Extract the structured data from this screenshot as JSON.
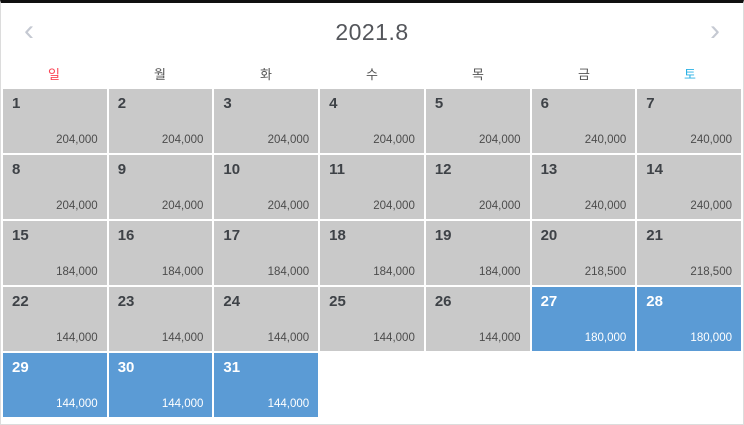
{
  "header": {
    "title": "2021.8",
    "prev_icon": "‹",
    "next_icon": "›"
  },
  "weekdays": [
    {
      "label": "일",
      "role": "sun"
    },
    {
      "label": "월",
      "role": "weekday"
    },
    {
      "label": "화",
      "role": "weekday"
    },
    {
      "label": "수",
      "role": "weekday"
    },
    {
      "label": "목",
      "role": "weekday"
    },
    {
      "label": "금",
      "role": "weekday"
    },
    {
      "label": "토",
      "role": "sat"
    }
  ],
  "colors": {
    "cell_default_bg": "#c9c9c9",
    "cell_selected_bg": "#5b9bd5",
    "sunday_text": "#fb4455",
    "saturday_text": "#29b1e5",
    "title_text": "#54565b",
    "top_border": "#101010"
  },
  "calendar": {
    "days": [
      {
        "day": "1",
        "price": "204,000",
        "state": "default"
      },
      {
        "day": "2",
        "price": "204,000",
        "state": "default"
      },
      {
        "day": "3",
        "price": "204,000",
        "state": "default"
      },
      {
        "day": "4",
        "price": "204,000",
        "state": "default"
      },
      {
        "day": "5",
        "price": "204,000",
        "state": "default"
      },
      {
        "day": "6",
        "price": "240,000",
        "state": "default"
      },
      {
        "day": "7",
        "price": "240,000",
        "state": "default"
      },
      {
        "day": "8",
        "price": "204,000",
        "state": "default"
      },
      {
        "day": "9",
        "price": "204,000",
        "state": "default"
      },
      {
        "day": "10",
        "price": "204,000",
        "state": "default"
      },
      {
        "day": "11",
        "price": "204,000",
        "state": "default"
      },
      {
        "day": "12",
        "price": "204,000",
        "state": "default"
      },
      {
        "day": "13",
        "price": "240,000",
        "state": "default"
      },
      {
        "day": "14",
        "price": "240,000",
        "state": "default"
      },
      {
        "day": "15",
        "price": "184,000",
        "state": "default"
      },
      {
        "day": "16",
        "price": "184,000",
        "state": "default"
      },
      {
        "day": "17",
        "price": "184,000",
        "state": "default"
      },
      {
        "day": "18",
        "price": "184,000",
        "state": "default"
      },
      {
        "day": "19",
        "price": "184,000",
        "state": "default"
      },
      {
        "day": "20",
        "price": "218,500",
        "state": "default"
      },
      {
        "day": "21",
        "price": "218,500",
        "state": "default"
      },
      {
        "day": "22",
        "price": "144,000",
        "state": "default"
      },
      {
        "day": "23",
        "price": "144,000",
        "state": "default"
      },
      {
        "day": "24",
        "price": "144,000",
        "state": "default"
      },
      {
        "day": "25",
        "price": "144,000",
        "state": "default"
      },
      {
        "day": "26",
        "price": "144,000",
        "state": "default"
      },
      {
        "day": "27",
        "price": "180,000",
        "state": "selected"
      },
      {
        "day": "28",
        "price": "180,000",
        "state": "selected"
      },
      {
        "day": "29",
        "price": "144,000",
        "state": "selected"
      },
      {
        "day": "30",
        "price": "144,000",
        "state": "selected"
      },
      {
        "day": "31",
        "price": "144,000",
        "state": "selected"
      },
      {
        "day": "",
        "price": "",
        "state": "empty"
      },
      {
        "day": "",
        "price": "",
        "state": "empty"
      },
      {
        "day": "",
        "price": "",
        "state": "empty"
      },
      {
        "day": "",
        "price": "",
        "state": "empty"
      }
    ]
  }
}
